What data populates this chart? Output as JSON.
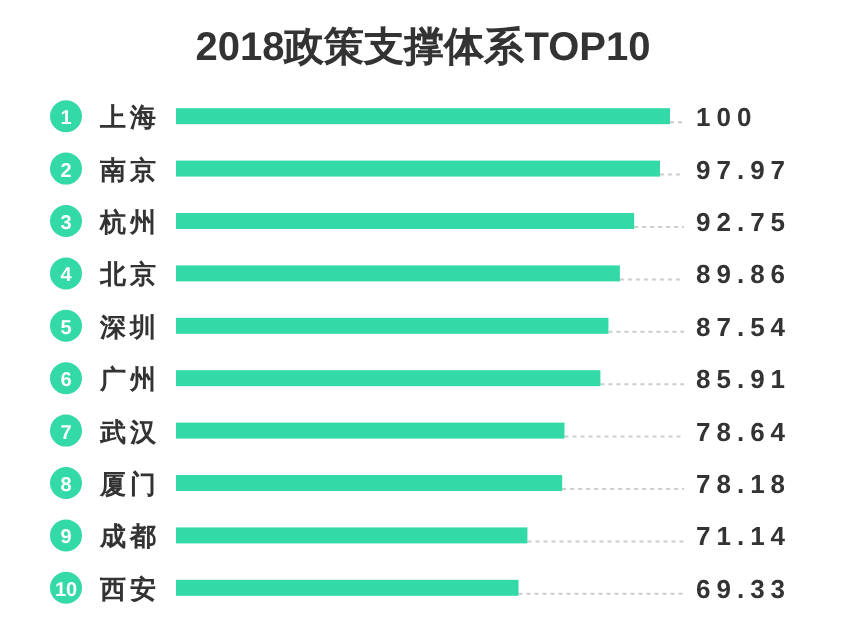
{
  "chart_data": {
    "type": "bar",
    "orientation": "horizontal",
    "title": "2018政策支撑体系TOP10",
    "categories": [
      "上海",
      "南京",
      "杭州",
      "北京",
      "深圳",
      "广州",
      "武汉",
      "厦门",
      "成都",
      "西安"
    ],
    "values": [
      100,
      97.97,
      92.75,
      89.86,
      87.54,
      85.91,
      78.64,
      78.18,
      71.14,
      69.33
    ],
    "value_labels": [
      "100",
      "97.97",
      "92.75",
      "89.86",
      "87.54",
      "85.91",
      "78.64",
      "78.18",
      "71.14",
      "69.33"
    ],
    "color": "#34d9a8",
    "annotations": [
      "1",
      "2",
      "3",
      "4",
      "5",
      "6",
      "7",
      "8",
      "9",
      "10"
    ]
  }
}
